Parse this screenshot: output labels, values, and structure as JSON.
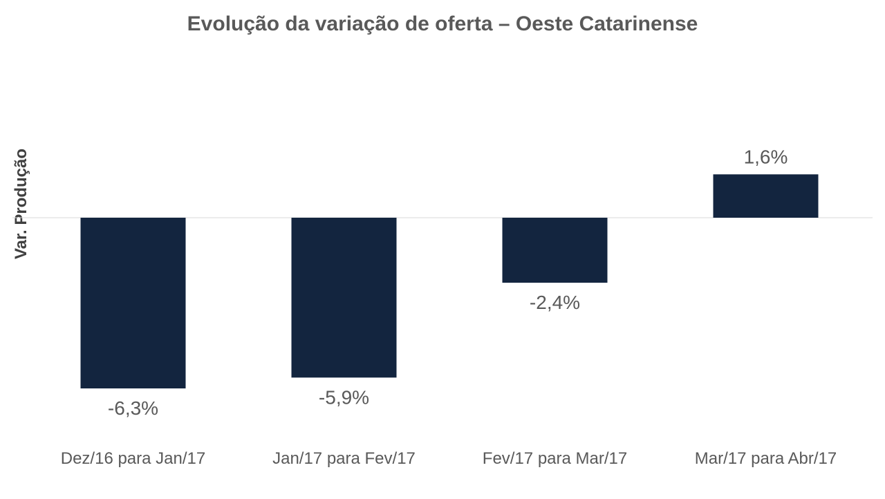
{
  "chart_data": {
    "type": "bar",
    "title": "Evolução da variação de oferta – Oeste Catarinense",
    "xlabel": "",
    "ylabel": "Var. Produção",
    "categories": [
      "Dez/16 para Jan/17",
      "Jan/17 para Fev/17",
      "Fev/17 para Mar/17",
      "Mar/17 para Abr/17"
    ],
    "values": [
      -6.3,
      -5.9,
      -2.4,
      1.6
    ],
    "data_labels": [
      "-6,3%",
      "-5,9%",
      "-2,4%",
      "1,6%"
    ],
    "unit": "%",
    "ylim": [
      -6.3,
      1.6
    ],
    "grid": false,
    "legend": "none",
    "colors": {
      "bar": "#13253f",
      "text": "#595959",
      "axis_title": "#404040",
      "zero_line": "#d9d9d9"
    }
  }
}
